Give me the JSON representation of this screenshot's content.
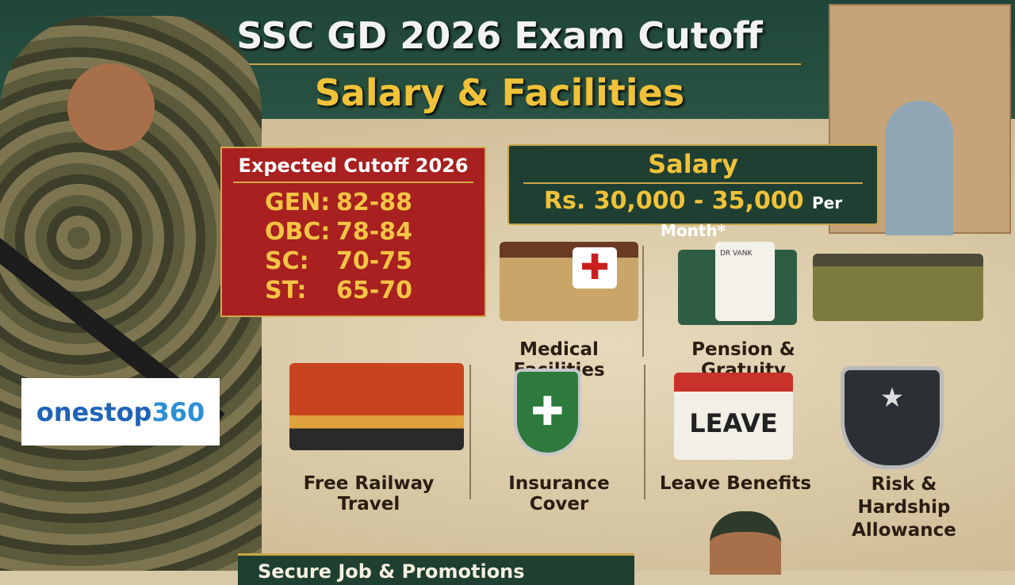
{
  "title": "SSC GD 2026 Exam Cutoff",
  "subtitle": "Salary & Facilities",
  "cutoff": {
    "heading": "Expected Cutoff 2026",
    "rows": [
      {
        "cat": "GEN:",
        "range": "82-88"
      },
      {
        "cat": "OBC:",
        "range": "78-84"
      },
      {
        "cat": "SC:",
        "range": "70-75"
      },
      {
        "cat": "ST:",
        "range": "65-70"
      }
    ]
  },
  "salary": {
    "heading": "Salary",
    "amount": "Rs. 30,000 - 35,000",
    "suffix": "Per Month*"
  },
  "benefits": [
    "Medical Facilities",
    "Pension & Gratuity",
    "Free Railway Travel",
    "Insurance Cover",
    "Leave Benefits",
    "Risk & Hardship Allowance"
  ],
  "leave_sign": "LEAVE",
  "document_text": "DR VANK",
  "logo": {
    "part1": "onestop",
    "part2": "360"
  },
  "banner": "Secure Job & Promotions"
}
